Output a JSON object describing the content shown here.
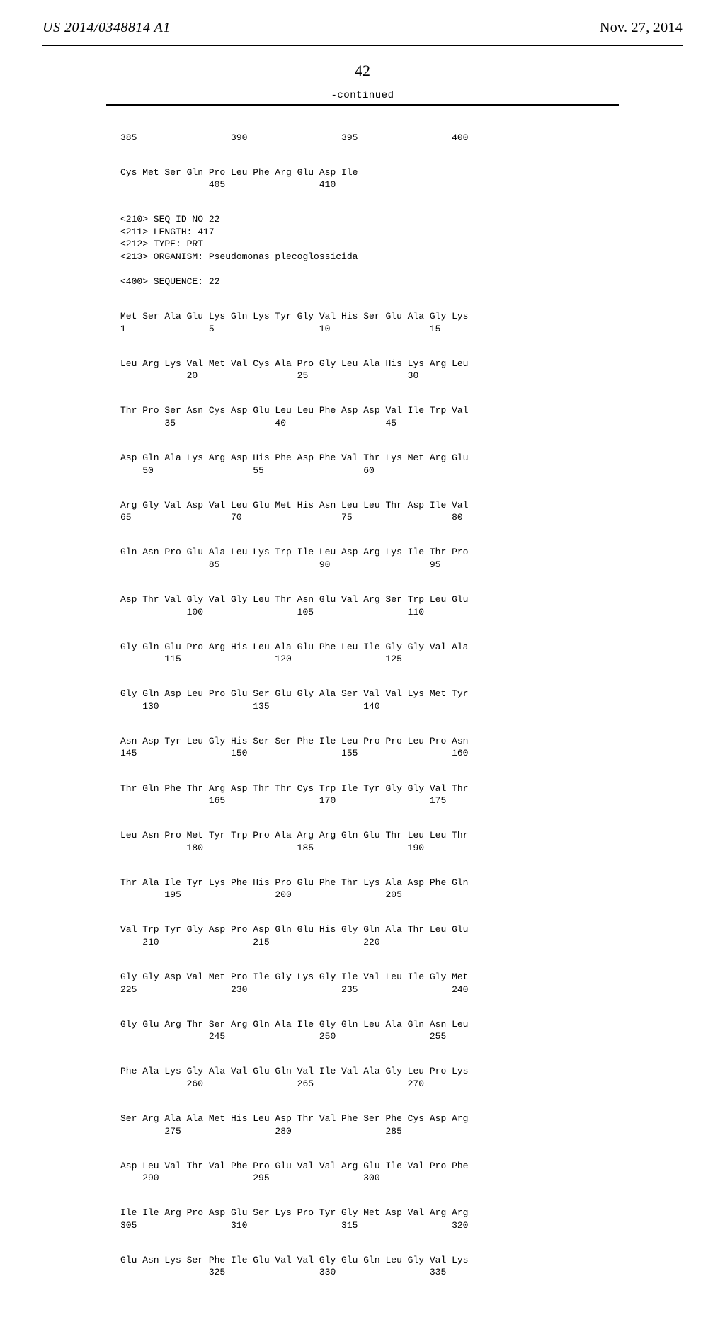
{
  "header": {
    "left": "US 2014/0348814 A1",
    "right": "Nov. 27, 2014"
  },
  "page_number": "42",
  "continued_label": "-continued",
  "seq_meta": {
    "l1": "<210> SEQ ID NO 22",
    "l2": "<211> LENGTH: 417",
    "l3": "<212> TYPE: PRT",
    "l4": "<213> ORGANISM: Pseudomonas plecoglossicida",
    "l5": "<400> SEQUENCE: 22"
  },
  "blocks": {
    "b0": {
      "r1": "385                 390                 395                 400"
    },
    "b1": {
      "r1": "Cys Met Ser Gln Pro Leu Phe Arg Glu Asp Ile",
      "r2": "                405                 410"
    },
    "b2": {
      "r1": "Met Ser Ala Glu Lys Gln Lys Tyr Gly Val His Ser Glu Ala Gly Lys",
      "r2": "1               5                   10                  15"
    },
    "b3": {
      "r1": "Leu Arg Lys Val Met Val Cys Ala Pro Gly Leu Ala His Lys Arg Leu",
      "r2": "            20                  25                  30"
    },
    "b4": {
      "r1": "Thr Pro Ser Asn Cys Asp Glu Leu Leu Phe Asp Asp Val Ile Trp Val",
      "r2": "        35                  40                  45"
    },
    "b5": {
      "r1": "Asp Gln Ala Lys Arg Asp His Phe Asp Phe Val Thr Lys Met Arg Glu",
      "r2": "    50                  55                  60"
    },
    "b6": {
      "r1": "Arg Gly Val Asp Val Leu Glu Met His Asn Leu Leu Thr Asp Ile Val",
      "r2": "65                  70                  75                  80"
    },
    "b7": {
      "r1": "Gln Asn Pro Glu Ala Leu Lys Trp Ile Leu Asp Arg Lys Ile Thr Pro",
      "r2": "                85                  90                  95"
    },
    "b8": {
      "r1": "Asp Thr Val Gly Val Gly Leu Thr Asn Glu Val Arg Ser Trp Leu Glu",
      "r2": "            100                 105                 110"
    },
    "b9": {
      "r1": "Gly Gln Glu Pro Arg His Leu Ala Glu Phe Leu Ile Gly Gly Val Ala",
      "r2": "        115                 120                 125"
    },
    "b10": {
      "r1": "Gly Gln Asp Leu Pro Glu Ser Glu Gly Ala Ser Val Val Lys Met Tyr",
      "r2": "    130                 135                 140"
    },
    "b11": {
      "r1": "Asn Asp Tyr Leu Gly His Ser Ser Phe Ile Leu Pro Pro Leu Pro Asn",
      "r2": "145                 150                 155                 160"
    },
    "b12": {
      "r1": "Thr Gln Phe Thr Arg Asp Thr Thr Cys Trp Ile Tyr Gly Gly Val Thr",
      "r2": "                165                 170                 175"
    },
    "b13": {
      "r1": "Leu Asn Pro Met Tyr Trp Pro Ala Arg Arg Gln Glu Thr Leu Leu Thr",
      "r2": "            180                 185                 190"
    },
    "b14": {
      "r1": "Thr Ala Ile Tyr Lys Phe His Pro Glu Phe Thr Lys Ala Asp Phe Gln",
      "r2": "        195                 200                 205"
    },
    "b15": {
      "r1": "Val Trp Tyr Gly Asp Pro Asp Gln Glu His Gly Gln Ala Thr Leu Glu",
      "r2": "    210                 215                 220"
    },
    "b16": {
      "r1": "Gly Gly Asp Val Met Pro Ile Gly Lys Gly Ile Val Leu Ile Gly Met",
      "r2": "225                 230                 235                 240"
    },
    "b17": {
      "r1": "Gly Glu Arg Thr Ser Arg Gln Ala Ile Gly Gln Leu Ala Gln Asn Leu",
      "r2": "                245                 250                 255"
    },
    "b18": {
      "r1": "Phe Ala Lys Gly Ala Val Glu Gln Val Ile Val Ala Gly Leu Pro Lys",
      "r2": "            260                 265                 270"
    },
    "b19": {
      "r1": "Ser Arg Ala Ala Met His Leu Asp Thr Val Phe Ser Phe Cys Asp Arg",
      "r2": "        275                 280                 285"
    },
    "b20": {
      "r1": "Asp Leu Val Thr Val Phe Pro Glu Val Val Arg Glu Ile Val Pro Phe",
      "r2": "    290                 295                 300"
    },
    "b21": {
      "r1": "Ile Ile Arg Pro Asp Glu Ser Lys Pro Tyr Gly Met Asp Val Arg Arg",
      "r2": "305                 310                 315                 320"
    },
    "b22": {
      "r1": "Glu Asn Lys Ser Phe Ile Glu Val Val Gly Glu Gln Leu Gly Val Lys",
      "r2": "                325                 330                 335"
    }
  }
}
